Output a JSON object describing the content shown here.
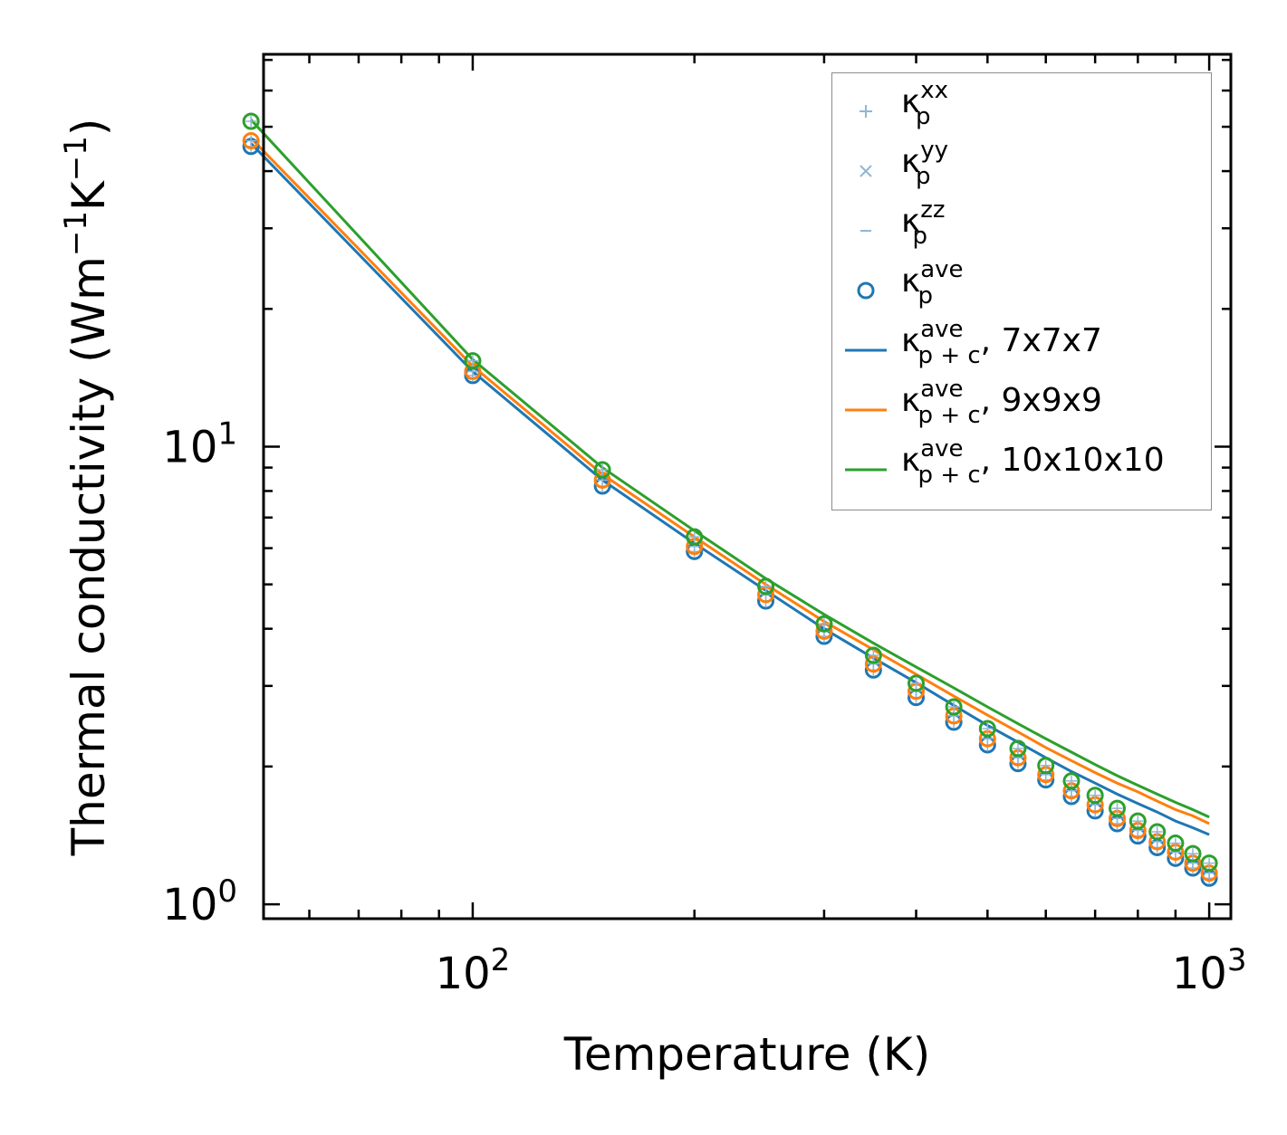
{
  "chart_data": {
    "type": "scatter",
    "x_scale": "log",
    "y_scale": "log",
    "xlabel": "Temperature (K)",
    "ylabel_main": "Thermal conductivity (Wm",
    "ylabel_mid": "K",
    "ylabel_end": ")",
    "ylabel_sup": "−1",
    "xlim": [
      52,
      1070
    ],
    "ylim": [
      0.93,
      72
    ],
    "x_ticks": [
      {
        "base": "10",
        "exp": "2",
        "value": 100
      },
      {
        "base": "10",
        "exp": "3",
        "value": 1000
      }
    ],
    "y_ticks": [
      {
        "base": "10",
        "exp": "0",
        "value": 1
      },
      {
        "base": "10",
        "exp": "1",
        "value": 10
      }
    ],
    "x": [
      50,
      100,
      150,
      200,
      250,
      300,
      350,
      400,
      450,
      500,
      550,
      600,
      650,
      700,
      750,
      800,
      850,
      900,
      950,
      1000
    ],
    "series": [
      {
        "name": "κp^ave 7x7x7",
        "color": "#1f77b4",
        "points": [
          45.3,
          14.3,
          8.2,
          5.9,
          4.6,
          3.85,
          3.25,
          2.83,
          2.5,
          2.23,
          2.03,
          1.87,
          1.72,
          1.6,
          1.5,
          1.41,
          1.33,
          1.26,
          1.2,
          1.14
        ],
        "line": [
          46.0,
          14.6,
          8.45,
          6.15,
          4.85,
          4.0,
          3.45,
          3.05,
          2.72,
          2.46,
          2.26,
          2.09,
          1.95,
          1.84,
          1.74,
          1.66,
          1.59,
          1.52,
          1.47,
          1.42
        ]
      },
      {
        "name": "κp^ave 9x9x9",
        "color": "#ff7f0e",
        "points": [
          46.6,
          14.6,
          8.45,
          6.05,
          4.75,
          3.95,
          3.35,
          2.92,
          2.58,
          2.3,
          2.09,
          1.92,
          1.77,
          1.65,
          1.54,
          1.45,
          1.37,
          1.3,
          1.23,
          1.17
        ],
        "line": [
          47.2,
          15.0,
          8.7,
          6.35,
          5.0,
          4.15,
          3.6,
          3.18,
          2.85,
          2.59,
          2.38,
          2.2,
          2.06,
          1.94,
          1.84,
          1.76,
          1.68,
          1.61,
          1.56,
          1.5
        ]
      },
      {
        "name": "κp^ave 10x10x10",
        "color": "#2ca02c",
        "points": [
          51.4,
          15.4,
          8.9,
          6.35,
          4.95,
          4.1,
          3.5,
          3.04,
          2.7,
          2.42,
          2.19,
          2.01,
          1.86,
          1.73,
          1.62,
          1.52,
          1.44,
          1.36,
          1.29,
          1.23
        ],
        "line": [
          51.8,
          15.5,
          9.0,
          6.55,
          5.15,
          4.3,
          3.72,
          3.3,
          2.97,
          2.7,
          2.48,
          2.3,
          2.15,
          2.02,
          1.91,
          1.82,
          1.74,
          1.67,
          1.61,
          1.55
        ]
      }
    ],
    "legend_position": "top-right",
    "legend": [
      {
        "symbol": "κ",
        "sup": "xx",
        "sub": "p",
        "suffix": "",
        "marker": "plus",
        "color": "#8fb7d6"
      },
      {
        "symbol": "κ",
        "sup": "yy",
        "sub": "p",
        "suffix": "",
        "marker": "x",
        "color": "#8fb7d6"
      },
      {
        "symbol": "κ",
        "sup": "zz",
        "sub": "p",
        "suffix": "",
        "marker": "dash",
        "color": "#8fb7d6"
      },
      {
        "symbol": "κ",
        "sup": "ave",
        "sub": "p",
        "suffix": "",
        "marker": "circle",
        "color": "#1f77b4"
      },
      {
        "symbol": "κ",
        "sup": "ave",
        "sub": "p + c",
        "suffix": ", 7x7x7",
        "marker": "line",
        "color": "#1f77b4"
      },
      {
        "symbol": "κ",
        "sup": "ave",
        "sub": "p + c",
        "suffix": ", 9x9x9",
        "marker": "line",
        "color": "#ff7f0e"
      },
      {
        "symbol": "κ",
        "sup": "ave",
        "sub": "p + c",
        "suffix": ", 10x10x10",
        "marker": "line",
        "color": "#2ca02c"
      }
    ]
  }
}
